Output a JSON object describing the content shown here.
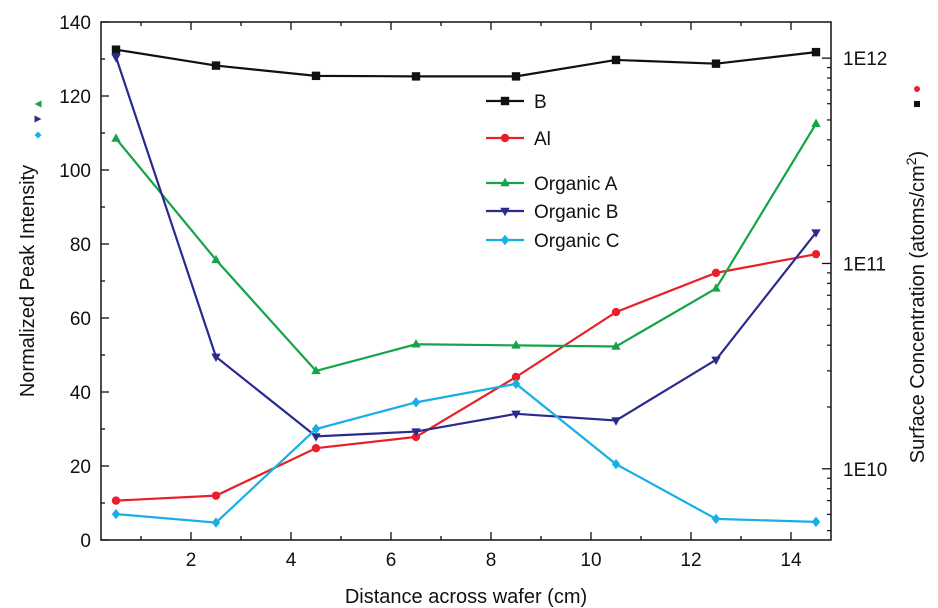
{
  "chart_data": {
    "type": "line",
    "title": "",
    "xlabel": "Distance across wafer (cm)",
    "ylabel_left": "Normalized Peak Intensity",
    "ylabel_right": "Surface Concentration (atoms/cm2)",
    "ylabel_right_main": "Surface Concentration (atoms/cm",
    "ylabel_right_sup": "2",
    "ylabel_right_tail": ")",
    "xlim": [
      0.2,
      14.8
    ],
    "ylim_left": [
      0,
      140
    ],
    "ylim_right": [
      4500000000,
      1500000000000
    ],
    "y_right_scale": "log",
    "grid": false,
    "legend_position": "top-center",
    "x_ticks": [
      "2",
      "4",
      "6",
      "8",
      "10",
      "12",
      "14"
    ],
    "x_tick_values": [
      2,
      4,
      6,
      8,
      10,
      12,
      14
    ],
    "y_left_ticks": [
      "0",
      "20",
      "40",
      "60",
      "80",
      "100",
      "120",
      "140"
    ],
    "y_left_tick_values": [
      0,
      20,
      40,
      60,
      80,
      100,
      120,
      140
    ],
    "y_right_ticks": [
      "1E10",
      "1E11",
      "1E12"
    ],
    "y_right_tick_values": [
      10000000000,
      100000000000,
      1000000000000
    ],
    "x": [
      0.5,
      2.5,
      4.5,
      6.5,
      8.5,
      10.5,
      12.5,
      14.5
    ],
    "series": [
      {
        "name": "B",
        "axis": "right",
        "color": "#111111",
        "marker": "square",
        "values": [
          1100000000000,
          920000000000,
          820000000000,
          815000000000,
          815000000000,
          980000000000,
          940000000000,
          1070000000000
        ]
      },
      {
        "name": "Al",
        "axis": "right",
        "color": "#e8202a",
        "marker": "circle",
        "values": [
          7000000000,
          7400000000,
          12600000000,
          14300000000,
          28000000000,
          58000000000,
          90000000000,
          111000000000
        ]
      },
      {
        "name": "Organic A",
        "axis": "left",
        "color": "#17a34a",
        "marker": "triangle-up",
        "values": [
          108.5,
          75.7,
          45.7,
          52.9,
          52.6,
          52.3,
          68.0,
          112.5
        ]
      },
      {
        "name": "Organic B",
        "axis": "left",
        "color": "#2b2b8e",
        "marker": "triangle-down",
        "values": [
          130.5,
          49.5,
          28.0,
          29.3,
          34.1,
          32.3,
          48.7,
          83.1
        ]
      },
      {
        "name": "Organic C",
        "axis": "left",
        "color": "#18aee6",
        "marker": "diamond",
        "values": [
          7.0,
          4.7,
          30.0,
          37.2,
          42.2,
          20.5,
          5.7,
          4.9
        ]
      }
    ]
  }
}
